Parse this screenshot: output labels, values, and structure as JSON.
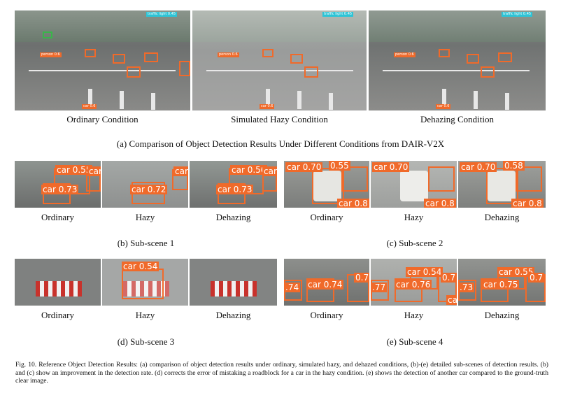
{
  "panel_a": {
    "images": [
      {
        "label": "Ordinary Condition"
      },
      {
        "label": "Simulated Hazy Condition"
      },
      {
        "label": "Dehazing Condition"
      }
    ],
    "caption": "(a) Comparison of Object Detection Results Under Different Conditions from DAIR-V2X",
    "tags": {
      "tl": "traffic light 0.45",
      "person": "person 0.6",
      "car": "car 0.6"
    }
  },
  "panel_b": {
    "labels": [
      "Ordinary",
      "Hazy",
      "Dehazing"
    ],
    "caption": "(b) Sub-scene 1",
    "tags": {
      "ord": [
        "car 0.55",
        "car 0.73",
        "car"
      ],
      "hazy": [
        "car 0.72",
        "car"
      ],
      "dehaze": [
        "car 0.56",
        "car 0.73",
        "car"
      ]
    }
  },
  "panel_c": {
    "labels": [
      "Ordinary",
      "Hazy",
      "Dehazing"
    ],
    "caption": "(c) Sub-scene 2",
    "tags": {
      "ord": [
        "car 0.70",
        "0.55",
        "car 0.8"
      ],
      "hazy": [
        "car 0.70",
        "car 0.8"
      ],
      "dehaze": [
        "car 0.70",
        "0.58",
        "car 0.8"
      ]
    }
  },
  "panel_d": {
    "labels": [
      "Ordinary",
      "Hazy",
      "Dehazing"
    ],
    "caption": "(d) Sub-scene 3",
    "tags": {
      "hazy": [
        "car 0.54"
      ]
    }
  },
  "panel_e": {
    "labels": [
      "Ordinary",
      "Hazy",
      "Dehazing"
    ],
    "caption": "(e) Sub-scene 4",
    "tags": {
      "ord": [
        ".74",
        "car 0.74",
        "0.7"
      ],
      "hazy": [
        ".77",
        "car 0.76",
        "car 0.54",
        "0.7",
        "ca"
      ],
      "dehaze": [
        ".73",
        "car 0.75",
        "car 0.55",
        "0.7"
      ]
    }
  },
  "figure_caption": "Fig. 10. Reference Object Detection Results: (a) comparison of object detection results under ordinary, simulated hazy, and dehazed conditions, (b)-(e) detailed sub-scenes of detection results. (b) and (c) show an improvement in the detection rate. (d) corrects the error of mistaking a roadblock for a car in the hazy condition. (e) shows the detection of another car compared to the ground-truth clear image.",
  "colors": {
    "box": "#f06a2a",
    "green_box": "#39b54a",
    "cyan_box": "#2ec4d6"
  }
}
